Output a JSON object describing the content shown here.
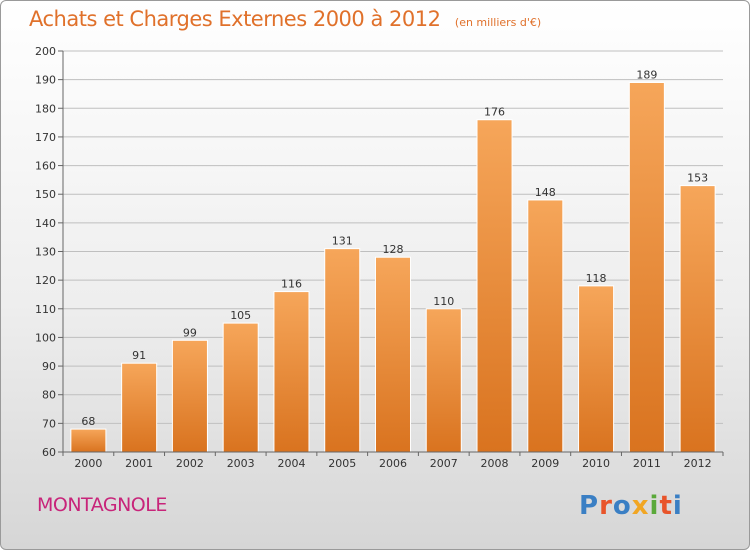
{
  "header": {
    "title": "Achats et Charges Externes 2000 à 2012",
    "subtitle": "(en milliers d'€)"
  },
  "commune": "MONTAGNOLE",
  "logo": {
    "text": "Proxiti",
    "colors": [
      "#3a7fc4",
      "#e8542a",
      "#3a7fc4",
      "#f1a623",
      "#5aa93a",
      "#e8542a",
      "#3a7fc4"
    ]
  },
  "colors": {
    "bar_top": "#f6a65a",
    "bar_bottom": "#d9731f",
    "grid": "#bfbfbf",
    "title": "#e0712b",
    "commune": "#c8247a"
  },
  "chart_data": {
    "type": "bar",
    "categories": [
      "2000",
      "2001",
      "2002",
      "2003",
      "2004",
      "2005",
      "2006",
      "2007",
      "2008",
      "2009",
      "2010",
      "2011",
      "2012"
    ],
    "values": [
      68,
      91,
      99,
      105,
      116,
      131,
      128,
      110,
      176,
      148,
      118,
      189,
      153
    ],
    "title": "Achats et Charges Externes 2000 à 2012",
    "subtitle": "(en milliers d'€)",
    "xlabel": "",
    "ylabel": "",
    "ylim": [
      60,
      200
    ],
    "yticks": [
      60,
      70,
      80,
      90,
      100,
      110,
      120,
      130,
      140,
      150,
      160,
      170,
      180,
      190,
      200
    ],
    "grid": true,
    "data_labels": true
  }
}
